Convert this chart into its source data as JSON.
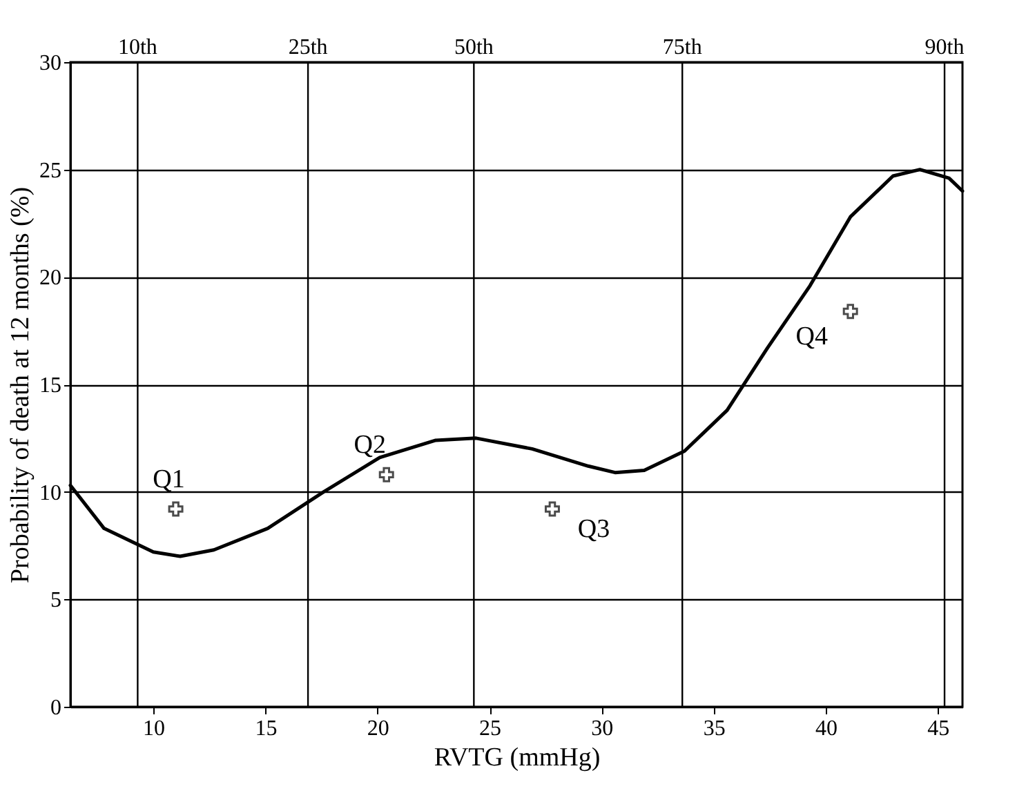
{
  "chart_data": {
    "type": "line",
    "xlabel": "RVTG (mmHg)",
    "ylabel": "Probability of death at 12 months (%)",
    "xlim": [
      6.3,
      46.1
    ],
    "xticks": [
      10,
      15,
      20,
      25,
      30,
      35,
      40,
      45
    ],
    "ylim": [
      0,
      30
    ],
    "yticks": [
      0,
      5,
      10,
      15,
      20,
      25,
      30
    ],
    "grid": "y",
    "line_style": "solid",
    "ref_lines": [
      {
        "axis": "x",
        "value": 9.3,
        "label": "10th"
      },
      {
        "axis": "x",
        "value": 16.9,
        "label": "25th"
      },
      {
        "axis": "x",
        "value": 24.3,
        "label": "50th"
      },
      {
        "axis": "x",
        "value": 33.6,
        "label": "75th"
      },
      {
        "axis": "x",
        "value": 45.3,
        "label": "90th"
      }
    ],
    "series": [
      {
        "color": "#000000",
        "x": [
          6.3,
          7.8,
          10,
          11.2,
          12.7,
          15.1,
          17.6,
          20.1,
          22.6,
          24.4,
          26.9,
          29.4,
          30.6,
          31.9,
          33.7,
          35.6,
          37.4,
          39.3,
          41.1,
          43,
          44.2,
          45.5,
          46.1
        ],
        "values": [
          10.3,
          8.3,
          7.2,
          7.0,
          7.3,
          8.3,
          10.0,
          11.6,
          12.4,
          12.5,
          12.0,
          11.2,
          10.9,
          11.0,
          11.9,
          13.8,
          16.7,
          19.6,
          22.8,
          24.7,
          25.0,
          24.6,
          24.0
        ]
      },
      {
        "type": "scatter",
        "color": "#000000",
        "marker": "cross",
        "x": [
          11.0,
          20.4,
          27.8,
          41.1
        ],
        "values": [
          9.2,
          10.8,
          9.2,
          18.4
        ],
        "value_labels": [
          "Q1",
          "Q2",
          "Q3",
          "Q4"
        ]
      }
    ]
  }
}
